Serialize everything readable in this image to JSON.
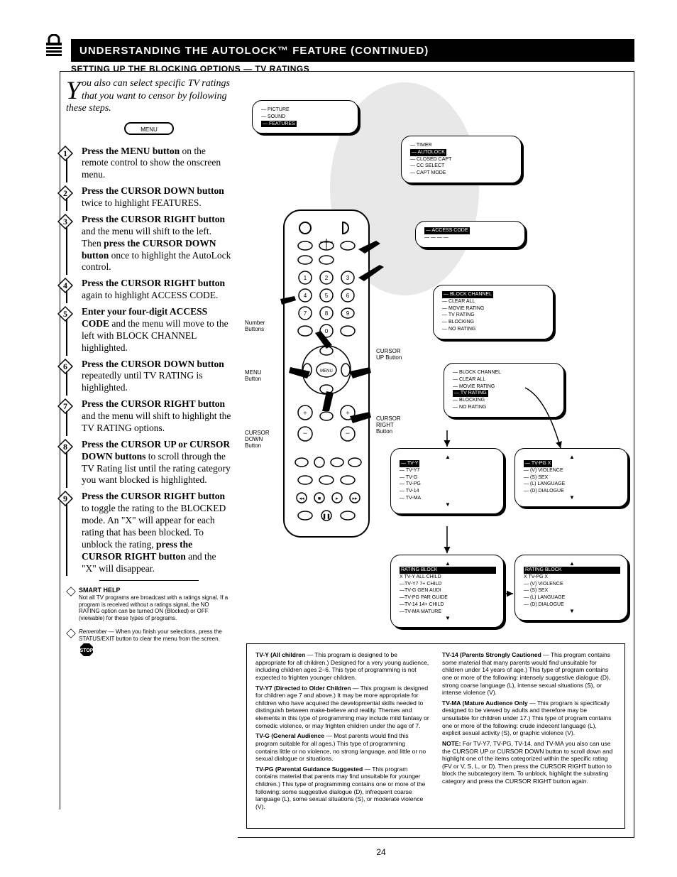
{
  "page_number": "24",
  "title_bar": "UNDERSTANDING THE AUTOLOCK™ FEATURE (CONTINUED)",
  "subtitle": "SETTING UP THE BLOCKING OPTIONS — TV RATINGS",
  "intro": {
    "dropcap": "Y",
    "text": "ou also can select specific TV ratings that you want to censor by following these steps."
  },
  "menu_button_label": "MENU",
  "steps": [
    {
      "n": "1",
      "html": "<b>Press the MENU button</b> on the remote control to show the onscreen menu."
    },
    {
      "n": "2",
      "html": "<b>Press the CURSOR DOWN button</b> twice to highlight FEATURES."
    },
    {
      "n": "3",
      "html": "<b>Press the CURSOR RIGHT button</b> and the menu will shift to the left. Then <b>press the CURSOR DOWN button</b> once to highlight the AutoLock control."
    },
    {
      "n": "4",
      "html": "<b>Press the CURSOR RIGHT button</b> again to highlight ACCESS CODE."
    },
    {
      "n": "5",
      "html": "<b>Enter your four-digit ACCESS CODE</b> and the menu will move to the left with BLOCK CHANNEL highlighted."
    },
    {
      "n": "6",
      "html": "<b>Press the CURSOR DOWN button</b> repeatedly until TV RATING is highlighted."
    },
    {
      "n": "7",
      "html": "<b>Press the CURSOR RIGHT button</b> and the menu will shift to highlight the TV RATING options."
    },
    {
      "n": "8",
      "html": "<b>Press the CURSOR UP or CURSOR DOWN buttons</b> to scroll through the TV Rating list until the rating category you want blocked is highlighted."
    },
    {
      "n": "9",
      "html": "<b>Press the CURSOR RIGHT button</b> to toggle the rating to the BLOCKED mode. An \"X\" will appear for each rating that has been blocked. To unblock the rating, <b>press the CURSOR RIGHT button</b> and the \"X\" will disappear."
    }
  ],
  "smart_help": {
    "title": "SMART HELP",
    "para1": "Not all TV programs are broadcast with a ratings signal. If a program is received without a ratings signal, the NO RATING option can be turned ON (Blocked) or OFF (viewable) for these types of programs.",
    "para2_lead": "Remember",
    "para2": " — When you finish your selections, press the STATUS/EXIT button to clear the menu from the screen."
  },
  "screens": {
    "s1": {
      "rows": [
        "— PICTURE",
        "— SOUND",
        "— FEATURES"
      ],
      "hl": 2
    },
    "s2": {
      "rows": [
        "— TIMER",
        "— AUTOLOCK",
        "— CLOSED CAPT",
        "— CC SELECT",
        "— CAPT MODE"
      ],
      "hl": 1
    },
    "s3": {
      "rows": [
        "— ACCESS CODE",
        "— — — —"
      ],
      "hl": 0
    },
    "s4": {
      "rows": [
        "— BLOCK CHANNEL",
        "— CLEAR ALL",
        "— MOVIE RATING",
        "— TV RATING",
        "— BLOCKING",
        "— NO RATING"
      ],
      "hl": 0
    },
    "s5": {
      "rows": [
        "— BLOCK CHANNEL",
        "— CLEAR ALL",
        "— MOVIE RATING",
        "— TV RATING",
        "— BLOCKING",
        "— NO RATING"
      ],
      "hl": 3
    },
    "s6": {
      "top_arrow": "▲",
      "rows": [
        "— TV-Y",
        "— TV-Y7",
        "— TV-G",
        "— TV-PG",
        "— TV-14",
        "— TV-MA"
      ],
      "hl": 0,
      "bot_arrow": "▼"
    },
    "s7": {
      "top_arrow": "▲",
      "rows": [
        "— TV-PG      X",
        "— (V) VIOLENCE",
        "— (S) SEX",
        "— (L) LANGUAGE",
        "— (D) DIALOGUE"
      ],
      "hl": 0,
      "bot_arrow": "▼"
    },
    "s8": {
      "top_arrow": "▲",
      "header": "RATING         BLOCK",
      "rows": [
        "X TV-Y ALL CHILD",
        "—TV-Y7 7+ CHILD",
        "—TV-G GEN AUDI",
        "—TV-PG PAR GUIDE",
        "—TV-14 14+ CHILD",
        "—TV-MA MATURE"
      ],
      "hl_header": true,
      "bot_arrow": "▼"
    },
    "s9": {
      "top_arrow": "▲",
      "header": "RATING         BLOCK",
      "rows": [
        "X   TV-PG      X",
        "— (V) VIOLENCE",
        "— (S) SEX",
        "— (L) LANGUAGE",
        "— (D) DIALOGUE"
      ],
      "hl_header": true,
      "bot_arrow": "▼"
    }
  },
  "remote_labels": {
    "menu": "MENU\nButton",
    "number": "Number\nButtons",
    "cursor_down": "CURSOR\nDOWN\nButton",
    "cursor_right": "CURSOR\nRIGHT\nButton",
    "cursor_up": "CURSOR\nUP Button"
  },
  "info_box": {
    "col1": [
      {
        "b": "TV-Y (All children",
        "rest": " — This program is designed to be appropriate for all children.) Designed for a very young audience, including children ages 2–6. This type of programming is not expected to frighten younger children."
      },
      {
        "b": "TV-Y7 (Directed to Older Children",
        "rest": " — This program is designed for children age 7 and above.) It may be more appropriate for children who have acquired the developmental skills needed to distinguish between make-believe and reality. Themes and elements in this type of programming may include mild fantasy or comedic violence, or may frighten children under the age of 7."
      },
      {
        "b": "TV-G (General Audience",
        "rest": " — Most parents would find this program suitable for all ages.) This type of programming contains little or no violence, no strong language, and little or no sexual dialogue or situations."
      },
      {
        "b": "TV-PG (Parental Guidance Suggested",
        "rest": " — This program contains material that parents may find unsuitable for younger children.) This type of programming contains one or more of the following: some suggestive dialogue (D), infrequent coarse language (L), some sexual situations (S), or moderate violence (V)."
      }
    ],
    "col2": [
      {
        "b": "TV-14 (Parents Strongly Cautioned",
        "rest": " — This program contains some material that many parents would find unsuitable for children under 14 years of age.) This type of program contains one or more of the following: intensely suggestive dialogue (D), strong coarse language (L), intense sexual situations (S), or intense violence (V)."
      },
      {
        "b": "TV-MA (Mature Audience Only",
        "rest": " — This program is specifically designed to be viewed by adults and therefore may be unsuitable for children under 17.) This type of program contains one or more of the following: crude indecent language (L), explicit sexual activity (S), or graphic violence (V)."
      },
      {
        "b": "NOTE:",
        "rest": " For TV-Y7, TV-PG, TV-14, and TV-MA you also can use the CURSOR UP or CURSOR DOWN button to scroll down and highlight one of the items categorized within the specific rating (FV or V, S, L, or D). Then press the CURSOR RIGHT button to block the subcategory item. To unblock, highlight the subrating category and press the CURSOR RIGHT button again."
      }
    ]
  },
  "colors": {
    "black": "#000000",
    "white": "#ffffff"
  }
}
